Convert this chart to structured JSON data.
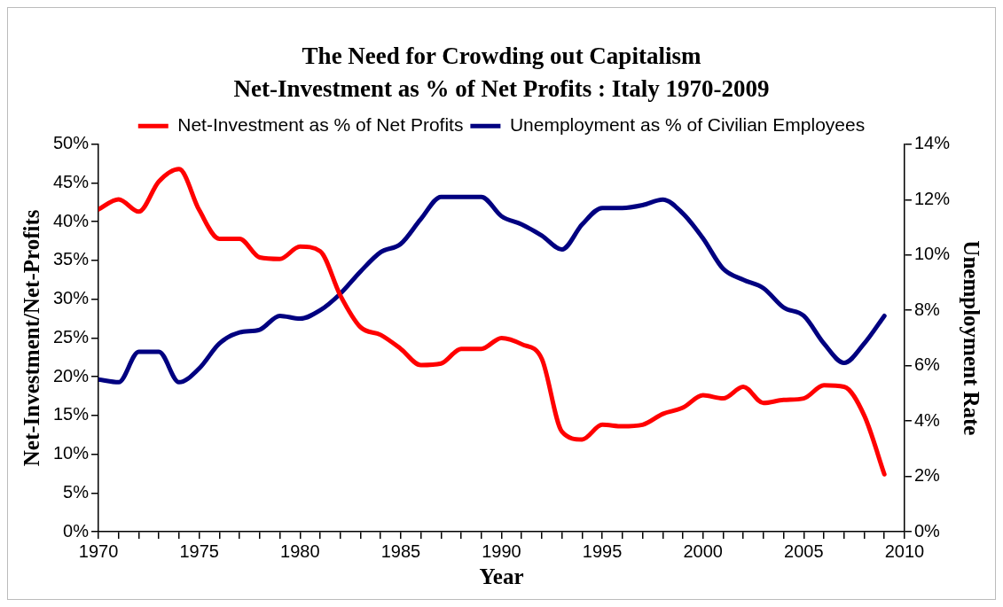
{
  "chart_data": {
    "type": "line",
    "title": "The Need for Crowding out Capitalism",
    "subtitle": "Net-Investment as % of Net Profits : Italy 1970-2009",
    "xlabel": "Year",
    "ylabel": "Net-Investment/Net-Profits",
    "y2label": "Unemployment Rate",
    "x": [
      1970,
      1971,
      1972,
      1973,
      1974,
      1975,
      1976,
      1977,
      1978,
      1979,
      1980,
      1981,
      1982,
      1983,
      1984,
      1985,
      1986,
      1987,
      1988,
      1989,
      1990,
      1991,
      1992,
      1993,
      1994,
      1995,
      1996,
      1997,
      1998,
      1999,
      2000,
      2001,
      2002,
      2003,
      2004,
      2005,
      2006,
      2007,
      2008,
      2009
    ],
    "series": [
      {
        "name": "Net-Investment as % of Net Profits",
        "color": "#ff0000",
        "values": [
          41.6,
          42.9,
          41.3,
          45.2,
          46.8,
          41.5,
          37.8,
          37.8,
          35.4,
          35.2,
          36.8,
          36.2,
          30.5,
          26.4,
          25.4,
          23.6,
          21.5,
          21.7,
          23.6,
          23.6,
          25.0,
          24.2,
          22.3,
          12.9,
          11.9,
          13.8,
          13.6,
          13.8,
          15.2,
          16.0,
          17.6,
          17.2,
          18.7,
          16.6,
          17.0,
          17.2,
          18.9,
          18.7,
          15.0,
          7.4
        ]
      },
      {
        "name": "Unemployment as % of Civilian Employees",
        "color": "#000080",
        "axis": "y2",
        "values": [
          5.5,
          5.4,
          6.5,
          6.5,
          5.4,
          5.9,
          6.8,
          7.2,
          7.3,
          7.8,
          7.7,
          8.0,
          8.6,
          9.4,
          10.1,
          10.4,
          11.3,
          12.1,
          12.1,
          12.1,
          11.4,
          11.1,
          10.7,
          10.2,
          11.1,
          11.7,
          11.7,
          11.8,
          12.0,
          11.5,
          10.6,
          9.5,
          9.1,
          8.8,
          8.1,
          7.8,
          6.8,
          6.1,
          6.8,
          7.8
        ]
      }
    ],
    "xlim": [
      1970,
      2010
    ],
    "xticks": [
      1970,
      {
        "value": 1971,
        "label": null
      },
      {
        "value": 1972,
        "label": null
      },
      {
        "value": 1973,
        "label": null
      },
      {
        "value": 1974,
        "label": null
      },
      1975,
      {
        "value": 1976,
        "label": null
      },
      {
        "value": 1977,
        "label": null
      },
      {
        "value": 1978,
        "label": null
      },
      {
        "value": 1979,
        "label": null
      },
      1980,
      {
        "value": 1981,
        "label": null
      },
      {
        "value": 1982,
        "label": null
      },
      {
        "value": 1983,
        "label": null
      },
      {
        "value": 1984,
        "label": null
      },
      1985,
      {
        "value": 1986,
        "label": null
      },
      {
        "value": 1987,
        "label": null
      },
      {
        "value": 1988,
        "label": null
      },
      {
        "value": 1989,
        "label": null
      },
      1990,
      {
        "value": 1991,
        "label": null
      },
      {
        "value": 1992,
        "label": null
      },
      {
        "value": 1993,
        "label": null
      },
      {
        "value": 1994,
        "label": null
      },
      1995,
      {
        "value": 1996,
        "label": null
      },
      {
        "value": 1997,
        "label": null
      },
      {
        "value": 1998,
        "label": null
      },
      {
        "value": 1999,
        "label": null
      },
      2000,
      {
        "value": 2001,
        "label": null
      },
      {
        "value": 2002,
        "label": null
      },
      {
        "value": 2003,
        "label": null
      },
      {
        "value": 2004,
        "label": null
      },
      2005,
      {
        "value": 2006,
        "label": null
      },
      {
        "value": 2007,
        "label": null
      },
      {
        "value": 2008,
        "label": null
      },
      {
        "value": 2009,
        "label": null
      },
      2010
    ],
    "ylim": [
      0,
      50
    ],
    "yticks": [
      {
        "value": 0,
        "label": "0%"
      },
      {
        "value": 5,
        "label": "5%"
      },
      {
        "value": 10,
        "label": "10%"
      },
      {
        "value": 15,
        "label": "15%"
      },
      {
        "value": 20,
        "label": "20%"
      },
      {
        "value": 25,
        "label": "25%"
      },
      {
        "value": 30,
        "label": "30%"
      },
      {
        "value": 35,
        "label": "35%"
      },
      {
        "value": 40,
        "label": "40%"
      },
      {
        "value": 45,
        "label": "45%"
      },
      {
        "value": 50,
        "label": "50%"
      }
    ],
    "y2lim": [
      0,
      14
    ],
    "y2ticks": [
      {
        "value": 0,
        "label": "0%"
      },
      {
        "value": 2,
        "label": "2%"
      },
      {
        "value": 4,
        "label": "4%"
      },
      {
        "value": 6,
        "label": "6%"
      },
      {
        "value": 8,
        "label": "8%"
      },
      {
        "value": 10,
        "label": "10%"
      },
      {
        "value": 12,
        "label": "12%"
      },
      {
        "value": 14,
        "label": "14%"
      }
    ],
    "grid": false,
    "legend": "top",
    "marker": "none",
    "line_style": "solid"
  }
}
